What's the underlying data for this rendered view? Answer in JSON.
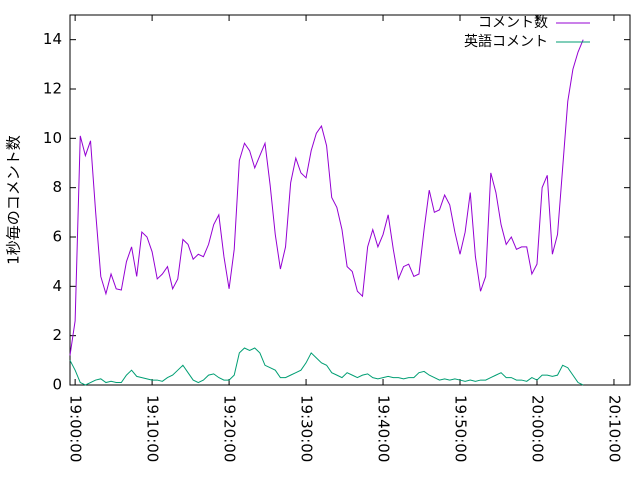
{
  "chart_data": {
    "type": "line",
    "y_label": "1秒毎のコメント数",
    "x": [
      "18:59:20",
      "19:00:00",
      "19:00:40",
      "19:01:20",
      "19:02:00",
      "19:02:40",
      "19:03:20",
      "19:04:00",
      "19:04:40",
      "19:05:20",
      "19:06:00",
      "19:06:40",
      "19:07:20",
      "19:08:00",
      "19:08:40",
      "19:09:20",
      "19:10:00",
      "19:10:40",
      "19:11:20",
      "19:12:00",
      "19:12:40",
      "19:13:20",
      "19:14:00",
      "19:14:40",
      "19:15:20",
      "19:16:00",
      "19:16:40",
      "19:17:20",
      "19:18:00",
      "19:18:40",
      "19:19:20",
      "19:20:00",
      "19:20:40",
      "19:21:20",
      "19:22:00",
      "19:22:40",
      "19:23:20",
      "19:24:00",
      "19:24:40",
      "19:25:20",
      "19:26:00",
      "19:26:40",
      "19:27:20",
      "19:28:00",
      "19:28:40",
      "19:29:20",
      "19:30:00",
      "19:30:40",
      "19:31:20",
      "19:32:00",
      "19:32:40",
      "19:33:20",
      "19:34:00",
      "19:34:40",
      "19:35:20",
      "19:36:00",
      "19:36:40",
      "19:37:20",
      "19:38:00",
      "19:38:40",
      "19:39:20",
      "19:40:00",
      "19:40:40",
      "19:41:20",
      "19:42:00",
      "19:42:40",
      "19:43:20",
      "19:44:00",
      "19:44:40",
      "19:45:20",
      "19:46:00",
      "19:46:40",
      "19:47:20",
      "19:48:00",
      "19:48:40",
      "19:49:20",
      "19:50:00",
      "19:50:40",
      "19:51:20",
      "19:52:00",
      "19:52:40",
      "19:53:20",
      "19:54:00",
      "19:54:40",
      "19:55:20",
      "19:56:00",
      "19:56:40",
      "19:57:20",
      "19:58:00",
      "19:58:40",
      "19:59:20",
      "20:00:00",
      "20:00:40",
      "20:01:20",
      "20:02:00",
      "20:02:40",
      "20:03:20",
      "20:04:00",
      "20:04:40",
      "20:05:20",
      "20:06:00"
    ],
    "series": [
      {
        "name": "コメント数",
        "color": "#9400d3",
        "values": [
          1.2,
          2.6,
          10.1,
          9.3,
          9.9,
          7.0,
          4.4,
          3.7,
          4.5,
          3.9,
          3.85,
          5.0,
          5.6,
          4.4,
          6.2,
          6.0,
          5.4,
          4.3,
          4.5,
          4.8,
          3.9,
          4.3,
          5.9,
          5.7,
          5.1,
          5.3,
          5.2,
          5.7,
          6.5,
          6.9,
          5.2,
          3.9,
          5.5,
          9.1,
          9.8,
          9.5,
          8.8,
          9.3,
          9.8,
          8.1,
          6.1,
          4.7,
          5.6,
          8.2,
          9.2,
          8.6,
          8.4,
          9.5,
          10.2,
          10.5,
          9.7,
          7.6,
          7.2,
          6.3,
          4.8,
          4.6,
          3.8,
          3.6,
          5.6,
          6.3,
          5.6,
          6.1,
          6.9,
          5.5,
          4.3,
          4.8,
          4.9,
          4.4,
          4.5,
          6.3,
          7.9,
          7.0,
          7.1,
          7.7,
          7.3,
          6.2,
          5.3,
          6.2,
          7.8,
          5.2,
          3.8,
          4.4,
          8.6,
          7.8,
          6.5,
          5.7,
          6.0,
          5.5,
          5.6,
          5.6,
          4.5,
          4.9,
          8.0,
          8.5,
          5.3,
          6.1,
          8.8,
          11.5,
          12.8,
          13.5,
          14.0
        ]
      },
      {
        "name": "英語コメント",
        "color": "#009e73",
        "values": [
          1.0,
          0.6,
          0.1,
          0.0,
          0.1,
          0.2,
          0.25,
          0.1,
          0.15,
          0.1,
          0.1,
          0.4,
          0.6,
          0.35,
          0.3,
          0.25,
          0.2,
          0.2,
          0.15,
          0.3,
          0.4,
          0.6,
          0.8,
          0.5,
          0.2,
          0.1,
          0.2,
          0.4,
          0.45,
          0.3,
          0.2,
          0.2,
          0.4,
          1.3,
          1.5,
          1.4,
          1.5,
          1.3,
          0.8,
          0.7,
          0.6,
          0.3,
          0.3,
          0.4,
          0.5,
          0.6,
          0.9,
          1.3,
          1.1,
          0.9,
          0.8,
          0.5,
          0.4,
          0.3,
          0.5,
          0.4,
          0.3,
          0.4,
          0.45,
          0.3,
          0.25,
          0.3,
          0.35,
          0.3,
          0.3,
          0.25,
          0.3,
          0.3,
          0.5,
          0.55,
          0.4,
          0.3,
          0.2,
          0.25,
          0.2,
          0.25,
          0.2,
          0.15,
          0.2,
          0.15,
          0.2,
          0.2,
          0.3,
          0.4,
          0.5,
          0.3,
          0.3,
          0.2,
          0.2,
          0.15,
          0.3,
          0.2,
          0.4,
          0.4,
          0.35,
          0.4,
          0.8,
          0.7,
          0.4,
          0.1,
          0.0
        ]
      }
    ],
    "xlim": [
      "18:59:20",
      "20:12:05"
    ],
    "xticks": [
      "19:00:00",
      "19:10:00",
      "19:20:00",
      "19:30:00",
      "19:40:00",
      "19:50:00",
      "20:00:00",
      "20:10:00"
    ],
    "ylim": [
      0,
      15
    ],
    "yticks": [
      0,
      2,
      4,
      6,
      8,
      10,
      12,
      14
    ],
    "legend": "upper right"
  }
}
